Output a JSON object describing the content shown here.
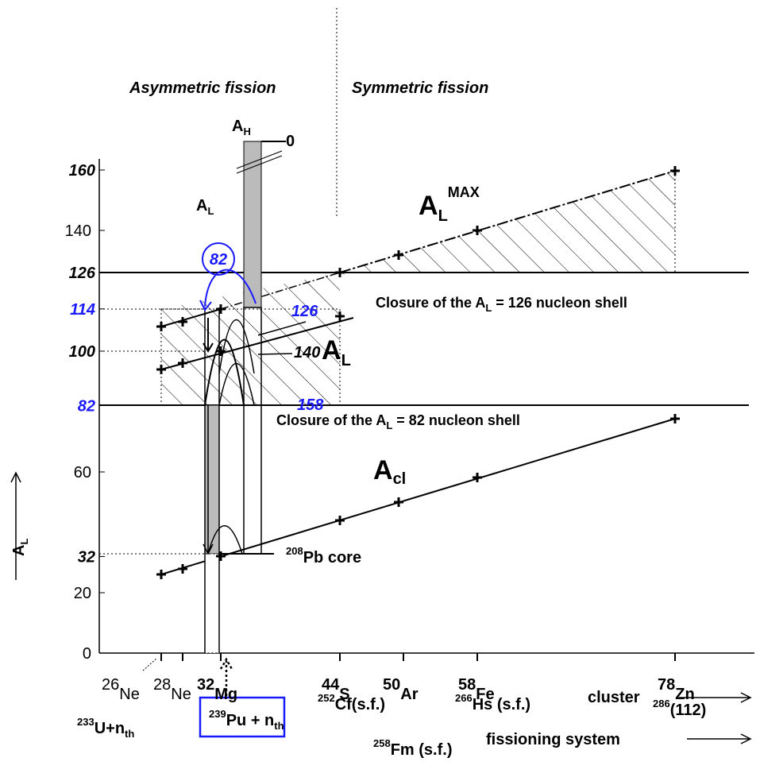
{
  "header": {
    "left": "Asymmetric fission",
    "right": "Symmetric fission"
  },
  "axis": {
    "y_label": {
      "main": "A",
      "sub": "L"
    },
    "y_ticks": [
      0,
      20,
      60,
      140
    ],
    "y_levels": [
      32,
      82,
      100,
      114,
      126,
      160
    ]
  },
  "clusters": [
    {
      "mass": "26",
      "el": "Ne"
    },
    {
      "mass": "28",
      "el": "Ne"
    },
    {
      "mass": "32",
      "el": "Mg"
    },
    {
      "mass": "44",
      "el": "S"
    },
    {
      "mass": "50",
      "el": "Ar"
    },
    {
      "mass": "58",
      "el": "Fe"
    },
    {
      "mass": "78",
      "el": "Zn"
    }
  ],
  "cluster_label": "cluster",
  "systems": [
    {
      "sup": "233",
      "main": "U+n",
      "sub": "th"
    },
    {
      "sup": "239",
      "main": "Pu + n",
      "sub": "th"
    },
    {
      "sup": "252",
      "main": "Cf(s.f.)"
    },
    {
      "sup": "258",
      "main": "Fm (s.f.)"
    },
    {
      "sup": "266",
      "main": "Hs (s.f.)"
    },
    {
      "sup": "286",
      "main": "(112)"
    }
  ],
  "system_label": "fissioning system",
  "labels": {
    "ah": {
      "main": "A",
      "sub": "H"
    },
    "zero": "0",
    "al": {
      "main": "A",
      "sub": "L"
    },
    "almax": {
      "main": "A",
      "sub": "L",
      "sup": "MAX"
    },
    "circle": "82",
    "n126": "126",
    "n140": "140",
    "n158": "158",
    "al_big": {
      "main": "A",
      "sub": "L"
    },
    "closure126": {
      "pre": "Closure of the A",
      "sub": "L",
      "post": " = 126 nucleon shell"
    },
    "closure82": {
      "pre": "Closure of the A",
      "sub": "L",
      "post": " = 82 nucleon shell"
    },
    "acl": {
      "main": "A",
      "sub": "cl"
    },
    "core": {
      "sup": "208",
      "main": "Pb core"
    }
  }
}
